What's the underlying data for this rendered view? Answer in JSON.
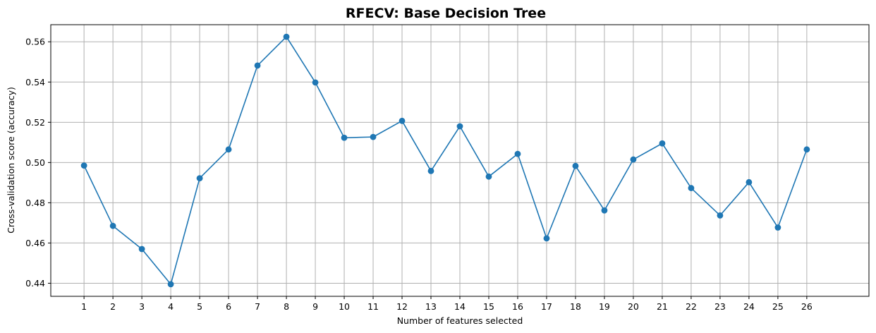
{
  "chart_data": {
    "type": "line",
    "title": "RFECV: Base Decision Tree",
    "xlabel": "Number of features selected",
    "ylabel": "Cross-validation score (accuracy)",
    "x": [
      1,
      2,
      3,
      4,
      5,
      6,
      7,
      8,
      9,
      10,
      11,
      12,
      13,
      14,
      15,
      16,
      17,
      18,
      19,
      20,
      21,
      22,
      23,
      24,
      25,
      26
    ],
    "series": [
      {
        "values": [
          0.4985,
          0.4685,
          0.457,
          0.4395,
          0.4922,
          0.5065,
          0.5482,
          0.5625,
          0.5398,
          0.5123,
          0.5127,
          0.5207,
          0.4958,
          0.518,
          0.493,
          0.5043,
          0.4623,
          0.4983,
          0.4762,
          0.5015,
          0.5095,
          0.4873,
          0.4737,
          0.4902,
          0.4677,
          0.5065
        ],
        "color": "#1f77b4",
        "marker": "circle"
      }
    ],
    "xlim": [
      -0.15,
      28.15
    ],
    "ylim": [
      0.4335,
      0.5685
    ],
    "xticks": [
      "1",
      "2",
      "3",
      "4",
      "5",
      "6",
      "7",
      "8",
      "9",
      "10",
      "11",
      "12",
      "13",
      "14",
      "15",
      "16",
      "17",
      "18",
      "19",
      "20",
      "21",
      "22",
      "23",
      "24",
      "25",
      "26"
    ],
    "yticks": [
      "0.44",
      "0.46",
      "0.48",
      "0.50",
      "0.52",
      "0.54",
      "0.56"
    ],
    "grid": true,
    "legend": "none"
  }
}
